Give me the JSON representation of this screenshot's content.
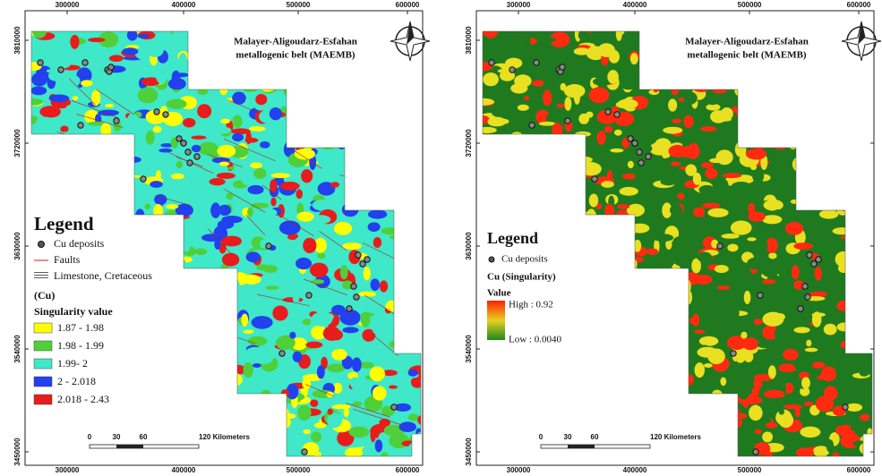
{
  "panels": [
    {
      "title_lines": [
        "Malayer-Aligoudarz-Esfahan",
        "metallogenic belt (MAEMB)"
      ],
      "top_ticks": [
        "300000",
        "400000",
        "500000",
        "600000"
      ],
      "bottom_ticks": [
        "300000",
        "400000",
        "500000",
        "600000"
      ],
      "left_ticks": [
        "3810000",
        "3720000",
        "3630000",
        "3540000",
        "3450000"
      ],
      "legend": {
        "title": "Legend",
        "items": [
          "Cu deposits",
          "Faults",
          "Limestone, Cretaceous"
        ],
        "subtitle": "(Cu)",
        "field": "Singularity value",
        "classes": [
          {
            "label": "1.87 - 1.98",
            "color": "#ffff00"
          },
          {
            "label": "1.98 - 1.99",
            "color": "#4fd03a"
          },
          {
            "label": "1.99- 2",
            "color": "#3ee8c8"
          },
          {
            "label": "2 - 2.018",
            "color": "#2240ee"
          },
          {
            "label": "2.018 - 2.43",
            "color": "#e81c1c"
          }
        ]
      },
      "scale_bar": [
        "0",
        "30",
        "60",
        "120 Kilometers"
      ]
    },
    {
      "title_lines": [
        "Malayer-Aligoudarz-Esfahan",
        "metallogenic belt (MAEMB)"
      ],
      "top_ticks": [
        "300000",
        "400000",
        "500000",
        "600000"
      ],
      "bottom_ticks": [
        "300000",
        "400000",
        "500000",
        "600000"
      ],
      "left_ticks": [
        "3810000",
        "3720000",
        "3630000",
        "3540000",
        "3450000"
      ],
      "legend": {
        "title": "Legend",
        "items": [
          "Cu deposits"
        ],
        "subtitle": "Cu (Singularity)",
        "field": "Value",
        "high": "High : 0.92",
        "low": "Low : 0.0040",
        "classes": [
          {
            "color": "#ff2a10"
          },
          {
            "color": "#e8e020"
          },
          {
            "color": "#1f7a1f"
          }
        ]
      },
      "scale_bar": [
        "0",
        "30",
        "60",
        "120 Kilometers"
      ]
    }
  ]
}
